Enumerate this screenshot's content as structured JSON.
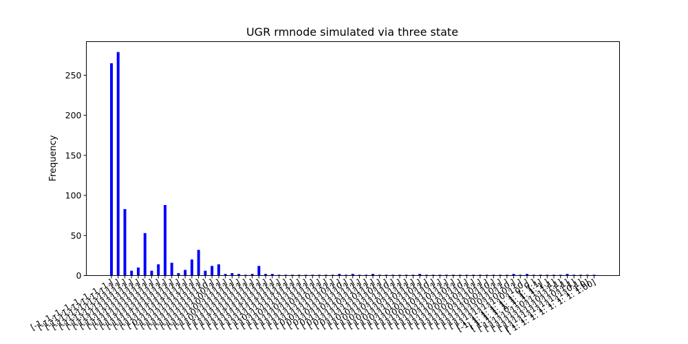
{
  "chart_data": {
    "type": "bar",
    "title": "UGR rmnode simulated via three state",
    "xlabel": "",
    "ylabel": "Frequency",
    "ylim": [
      0,
      292
    ],
    "yticks": [
      0,
      50,
      100,
      150,
      200,
      250
    ],
    "grid": false,
    "bar_color": "#0000ff",
    "categories": [
      "[-1.-1.-1.-1.-1.-1.-1.-1.]",
      "[-1.-1.-1.-1.-1.-1.-1. 1.]",
      "[-1.-1.-1.-1.-1.-1. 1. 1.]",
      "[-1.-1.-1.-1.-1. 1. 1. 1.]",
      "[-1.-1.-1.-1. 1. 1. 1. 1.]",
      "[-1.-1.-1. 1. 1. 1. 1. 1.]",
      "[-1.-1. 1.-1. 1. 1. 1. 1.]",
      "[-1.-1. 1. 1. 1. 1. 1. 1.]",
      "[-1. 1. 1. 1. 1. 1. 1. 1.]",
      "[-1. 1.-1. 1. 1. 1. 1. 1.]",
      "[-1. 1. 1.-1. 1. 1. 1. 1.]",
      "[-1. 1. 1. 1.-1. 1. 1. 1.]",
      "[-1. 1. 1. 1. 1.-1. 1. 1.]",
      "[-1. 1. 1. 1. 1. 1.-1. 1.]",
      "[ 0. 1. 1. 1. 1. 1. 1. 1.]",
      "[-1. 1. 1. 1. 1. 1. 1. 0.]",
      "[-1. 1. 1. 1. 1. 1. 0. 1.]",
      "[-1. 1. 1. 1. 1. 0. 1. 1.]",
      "[-1. 1. 1. 1. 0. 1. 1. 1.]",
      "[-1. 1. 1. 0. 1. 1. 1. 1.]",
      "[-1. 1. 0. 1. 1. 1. 1. 1.]",
      "[-1. 0. 1. 1. 1. 1. 1. 1.]",
      "[ 1.-1. 1. 1. 1. 1. 1. 1.]",
      "[ 1. 1.-1. 1. 1. 1. 1. 1.]",
      "[ 1. 1. 1.-1. 1. 1. 1. 1.]",
      "[ 1. 1. 1. 1.-1. 1. 1. 1.]",
      "[ 1. 1. 1. 1. 1.-1. 1. 1.]",
      "[ 1. 1. 1. 1. 1. 1.-1. 1.]",
      "[ 1. 1. 1. 1. 1. 1. 1.-1.]",
      "[ 1. 0. 1. 1. 1. 1. 1. 1.]",
      "[ 1. 1. 0. 1. 1. 1. 1. 1.]",
      "[ 1. 1. 1. 0. 1. 1. 1. 1.]",
      "[ 1. 1. 1. 1. 0. 1. 1. 1.]",
      "[ 1. 1. 1. 1. 1. 0. 1. 1.]",
      "[ 1. 1. 1. 1. 1. 1. 0. 1.]",
      "[ 1. 1. 1. 1. 1. 1. 1. 0.]",
      "[ 0. 0. 1. 1. 1. 1. 1. 1.]",
      "[ 0. 1. 0. 1. 1. 1. 1. 1.]",
      "[ 0. 1. 1. 0. 1. 1. 1. 1.]",
      "[ 0. 1. 1. 1. 0. 1. 1. 1.]",
      "[ 0. 1. 1. 1. 1. 0. 1. 1.]",
      "[ 0. 1. 1. 1. 1. 1. 0. 1.]",
      "[ 0. 1. 1. 1. 1. 1. 1. 0.]",
      "[ 1. 0. 0. 1. 1. 1. 1. 1.]",
      "[ 1. 0. 1. 0. 1. 1. 1. 1.]",
      "[ 1. 0. 1. 1. 0. 1. 1. 1.]",
      "[ 1. 0. 1. 1. 1. 0. 1. 1.]",
      "[ 1. 0. 1. 1. 1. 1. 0. 1.]",
      "[ 1. 0. 1. 1. 1. 1. 1. 0.]",
      "[ 1. 1. 0. 0. 1. 1. 1. 1.]",
      "[ 1. 1. 0. 1. 0. 1. 1. 1.]",
      "[ 1. 1. 0. 1. 1. 0. 1. 1.]",
      "[ 1. 1. 0. 1. 1. 1. 0. 1.]",
      "[ 1. 1. 0. 1. 1. 1. 1. 0.]",
      "[ 1. 1. 1. 0. 0. 1. 1. 1.]",
      "[ 1. 1. 1. 0. 1. 0. 1. 1.]",
      "[ 1. 1. 1. 0. 1. 1. 0. 1.]",
      "[ 1. 1. 1. 0. 1. 1. 1. 0.]",
      "[ 1. 1. 1. 1. 0. 0. 1. 1.]",
      "[ 1. 1. 1. 1. 0. 1. 0. 1.]",
      "[ 1. 1. 1. 1. 0. 1. 1. 0.]",
      "[ 1. 1. 1. 1. 1. 0. 0. 1.]",
      "[ 1. 1. 1. 1. 1. 0. 1. 0.]",
      "[ 1. 1. 1. 1. 1. 1. 0. 0.]",
      "[-1. 1. 1. 1. 1. 1. 1. 1.1]",
      "[ 1. 1. 1. 1. 1. 1. 1. 1.]",
      "[ 1. 1. 1. 0. 1. 1. 1. 1.1]",
      "[ 1. 1. 1. 1. 0. 1. 1. 1.1]",
      "[ 1. 1. 1. 1. 1. 0. 1. 1.1]",
      "[ 1. 1. 1. 1. 1. 1. 0. 1.1]",
      "[ 1. 1. 1. 1. 1. 1. 1. 0.1]",
      "[ 1. 1. 1. 1. 1. 1. 1. 1.0]",
      "[ 1. 1. 1. 1. 1. 1. 1. 1.00]"
    ],
    "values": [
      265,
      279,
      83,
      6,
      10,
      53,
      6,
      14,
      88,
      16,
      3,
      7,
      20,
      32,
      6,
      12,
      14,
      2,
      3,
      2,
      1,
      2,
      12,
      2,
      2,
      1,
      1,
      1,
      1,
      1,
      1,
      1,
      1,
      1,
      2,
      1,
      2,
      1,
      1,
      2,
      1,
      1,
      1,
      1,
      1,
      1,
      2,
      1,
      1,
      1,
      1,
      1,
      1,
      1,
      1,
      1,
      1,
      1,
      1,
      1,
      2,
      1,
      2,
      1,
      1,
      1,
      1,
      1,
      2,
      1,
      1,
      1,
      1
    ]
  }
}
